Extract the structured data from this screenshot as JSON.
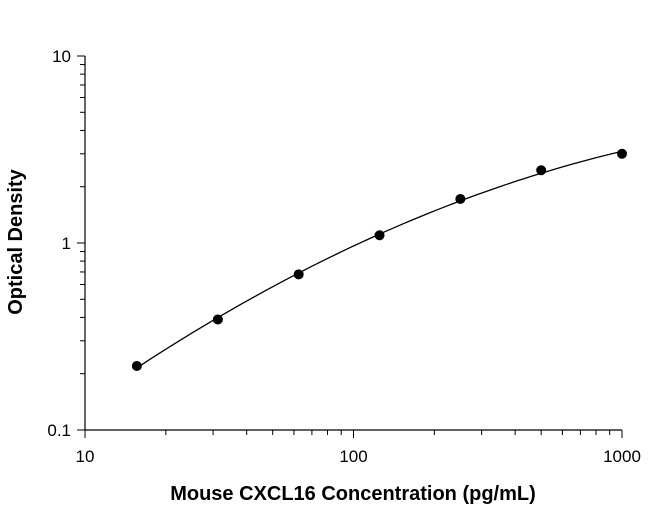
{
  "chart_data": {
    "type": "scatter",
    "title": "",
    "xlabel": "Mouse CXCL16 Concentration (pg/mL)",
    "ylabel": "Optical Density",
    "x_scale": "log",
    "y_scale": "log",
    "xlim": [
      10,
      1000
    ],
    "ylim": [
      0.1,
      10
    ],
    "x_ticks": [
      10,
      100,
      1000
    ],
    "x_tick_labels": [
      "10",
      "100",
      "1000"
    ],
    "y_ticks": [
      0.1,
      1,
      10
    ],
    "y_tick_labels": [
      "0.1",
      "1",
      "10"
    ],
    "grid": false,
    "legend": "none",
    "series": [
      {
        "x": [
          15.6,
          31.25,
          62.5,
          125,
          250,
          500,
          1000
        ],
        "y": [
          0.22,
          0.39,
          0.68,
          1.1,
          1.72,
          2.45,
          3.0
        ],
        "marker_color": "#000000",
        "fit_line": true
      }
    ]
  }
}
